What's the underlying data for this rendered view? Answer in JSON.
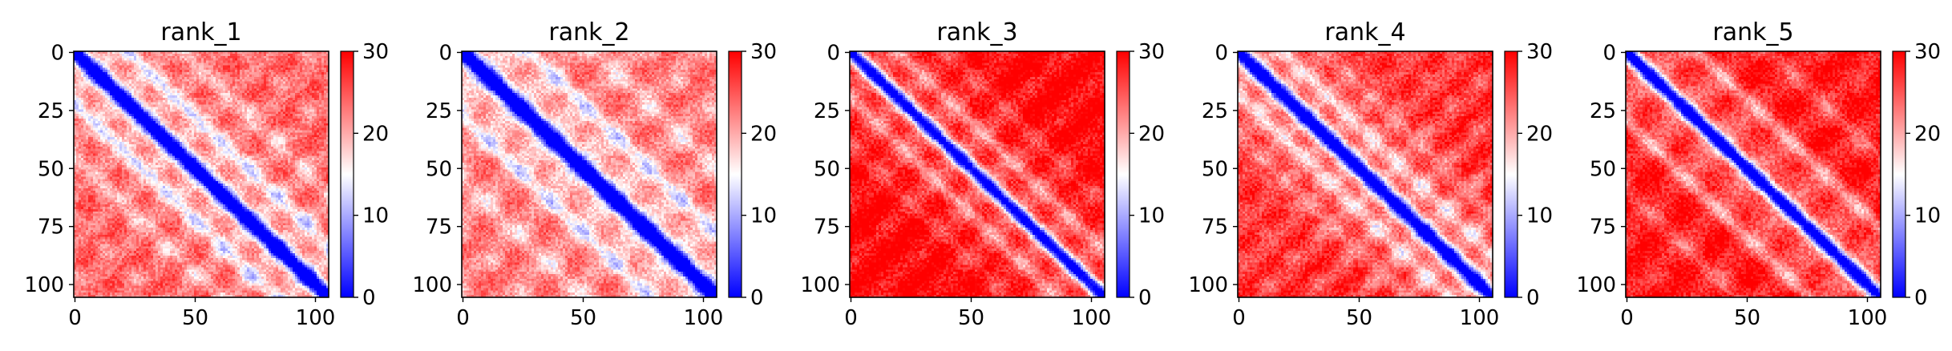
{
  "chart_data": [
    {
      "type": "heatmap",
      "title": "rank_1",
      "matrix_size": 106,
      "xticks": [
        0,
        50,
        100
      ],
      "yticks": [
        0,
        25,
        50,
        75,
        100
      ],
      "colorbar": {
        "ticks": [
          0,
          10,
          20,
          30
        ],
        "vmin": 0,
        "vmax": 30
      },
      "colormap": [
        "#0000ff",
        "#ffffff",
        "#ff0000"
      ],
      "pattern": {
        "diag_width": 3.2,
        "stripe_period": 22,
        "stripe_dist": 22,
        "spot_period": 24,
        "spot_strength": 0.85,
        "base": 0.62
      }
    },
    {
      "type": "heatmap",
      "title": "rank_2",
      "matrix_size": 106,
      "xticks": [
        0,
        50,
        100
      ],
      "yticks": [
        0,
        25,
        50,
        75,
        100
      ],
      "colorbar": {
        "ticks": [
          0,
          10,
          20,
          30
        ],
        "vmin": 0,
        "vmax": 30
      },
      "colormap": [
        "#0000ff",
        "#ffffff",
        "#ff0000"
      ],
      "pattern": {
        "diag_width": 3.4,
        "stripe_period": 26,
        "stripe_dist": 28,
        "spot_period": 26,
        "spot_strength": 0.7,
        "base": 0.58
      }
    },
    {
      "type": "heatmap",
      "title": "rank_3",
      "matrix_size": 106,
      "xticks": [
        0,
        50,
        100
      ],
      "yticks": [
        0,
        25,
        50,
        75,
        100
      ],
      "colorbar": {
        "ticks": [
          0,
          10,
          20,
          30
        ],
        "vmin": 0,
        "vmax": 30
      },
      "colormap": [
        "#0000ff",
        "#ffffff",
        "#ff0000"
      ],
      "pattern": {
        "diag_width": 3.0,
        "stripe_period": 24,
        "stripe_dist": 20,
        "spot_period": 30,
        "spot_strength": 0.25,
        "base": 0.82
      }
    },
    {
      "type": "heatmap",
      "title": "rank_4",
      "matrix_size": 106,
      "xticks": [
        0,
        50,
        100
      ],
      "yticks": [
        0,
        25,
        50,
        75,
        100
      ],
      "colorbar": {
        "ticks": [
          0,
          10,
          20,
          30
        ],
        "vmin": 0,
        "vmax": 30
      },
      "colormap": [
        "#0000ff",
        "#ffffff",
        "#ff0000"
      ],
      "pattern": {
        "diag_width": 3.3,
        "stripe_period": 20,
        "stripe_dist": 18,
        "spot_period": 22,
        "spot_strength": 0.6,
        "base": 0.72
      }
    },
    {
      "type": "heatmap",
      "title": "rank_5",
      "matrix_size": 106,
      "xticks": [
        0,
        50,
        100
      ],
      "yticks": [
        0,
        25,
        50,
        75,
        100
      ],
      "colorbar": {
        "ticks": [
          0,
          10,
          20,
          30
        ],
        "vmin": 0,
        "vmax": 30
      },
      "colormap": [
        "#0000ff",
        "#ffffff",
        "#ff0000"
      ],
      "pattern": {
        "diag_width": 3.1,
        "stripe_period": 28,
        "stripe_dist": 30,
        "spot_period": 28,
        "spot_strength": 0.4,
        "base": 0.78
      }
    }
  ]
}
